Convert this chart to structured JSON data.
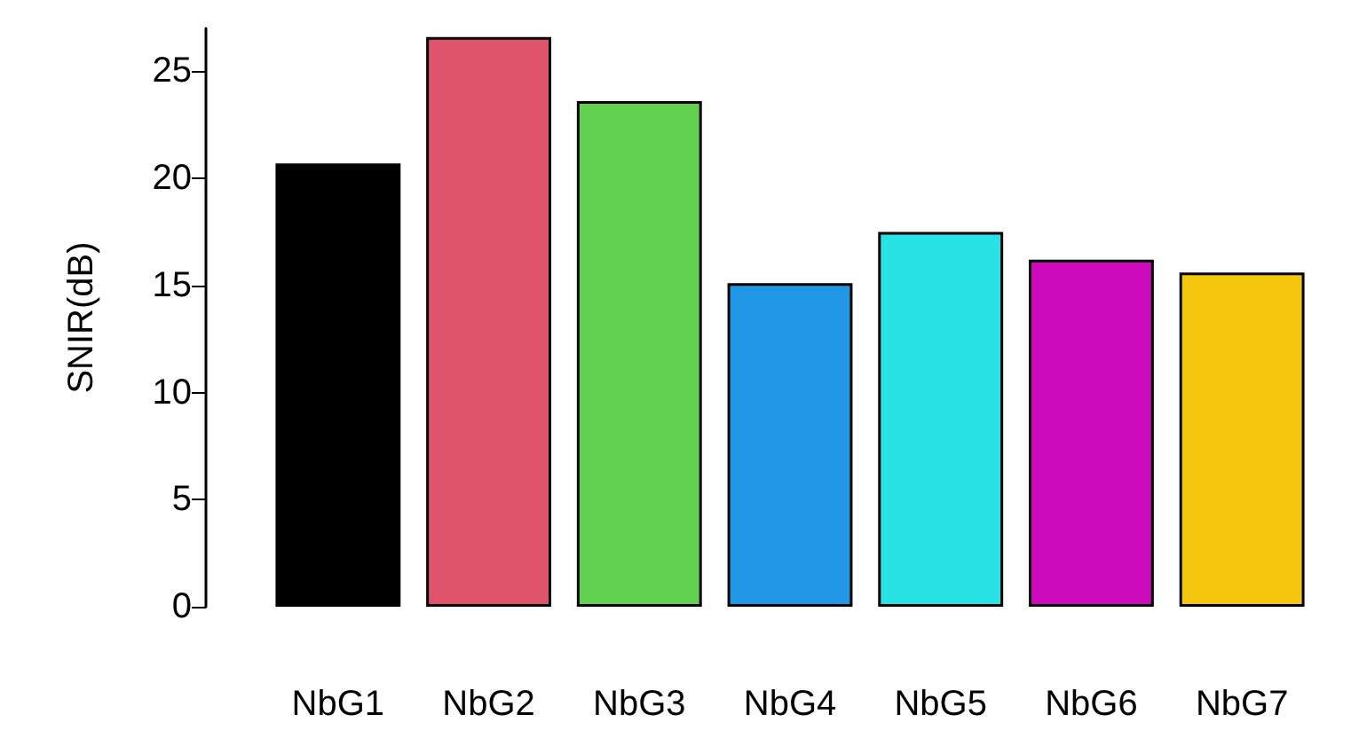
{
  "chart_data": {
    "type": "bar",
    "ylabel": "SNIR(dB)",
    "categories": [
      "NbG1",
      "NbG2",
      "NbG3",
      "NbG4",
      "NbG5",
      "NbG6",
      "NbG7"
    ],
    "values": [
      20.7,
      26.6,
      23.6,
      15.1,
      17.5,
      16.2,
      15.6
    ],
    "colors": [
      "#000000",
      "#df536b",
      "#61d04f",
      "#2297e6",
      "#28e2e5",
      "#cd0bbc",
      "#f5c710"
    ],
    "ylim": [
      0,
      27
    ],
    "yticks": [
      0,
      5,
      10,
      15,
      20,
      25
    ],
    "grid": false
  }
}
